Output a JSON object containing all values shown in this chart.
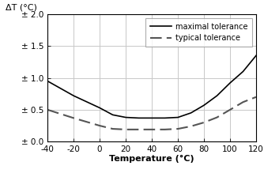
{
  "title": "",
  "ylabel": "ΔT (°C)",
  "xlabel": "Temperature (°C)",
  "xlim": [
    -40,
    120
  ],
  "ylim": [
    0.0,
    2.0
  ],
  "xticks": [
    -40,
    -20,
    0,
    20,
    40,
    60,
    80,
    100,
    120
  ],
  "yticks": [
    0.0,
    0.5,
    1.0,
    1.5,
    2.0
  ],
  "ytick_labels": [
    "± 0.0",
    "± 0.5",
    "± 1.0",
    "± 1.5",
    "± 2.0"
  ],
  "max_tol_x": [
    -40,
    -20,
    0,
    10,
    20,
    30,
    40,
    50,
    60,
    70,
    80,
    90,
    100,
    110,
    120
  ],
  "max_tol_y": [
    0.95,
    0.72,
    0.53,
    0.42,
    0.38,
    0.37,
    0.37,
    0.37,
    0.38,
    0.45,
    0.57,
    0.72,
    0.92,
    1.1,
    1.35
  ],
  "typ_tol_x": [
    -40,
    -20,
    0,
    10,
    20,
    30,
    40,
    50,
    60,
    70,
    80,
    90,
    100,
    110,
    120
  ],
  "typ_tol_y": [
    0.5,
    0.37,
    0.25,
    0.2,
    0.19,
    0.19,
    0.19,
    0.19,
    0.2,
    0.24,
    0.3,
    0.38,
    0.5,
    0.62,
    0.7
  ],
  "line_color": "#000000",
  "grid_color": "#c8c8c8",
  "background_color": "#ffffff",
  "legend_loc": "upper right",
  "legend_labels": [
    "maximal tolerance",
    "typical tolerance"
  ],
  "fontsize": 7.5,
  "xlabel_fontsize": 8,
  "ylabel_fontsize": 8
}
